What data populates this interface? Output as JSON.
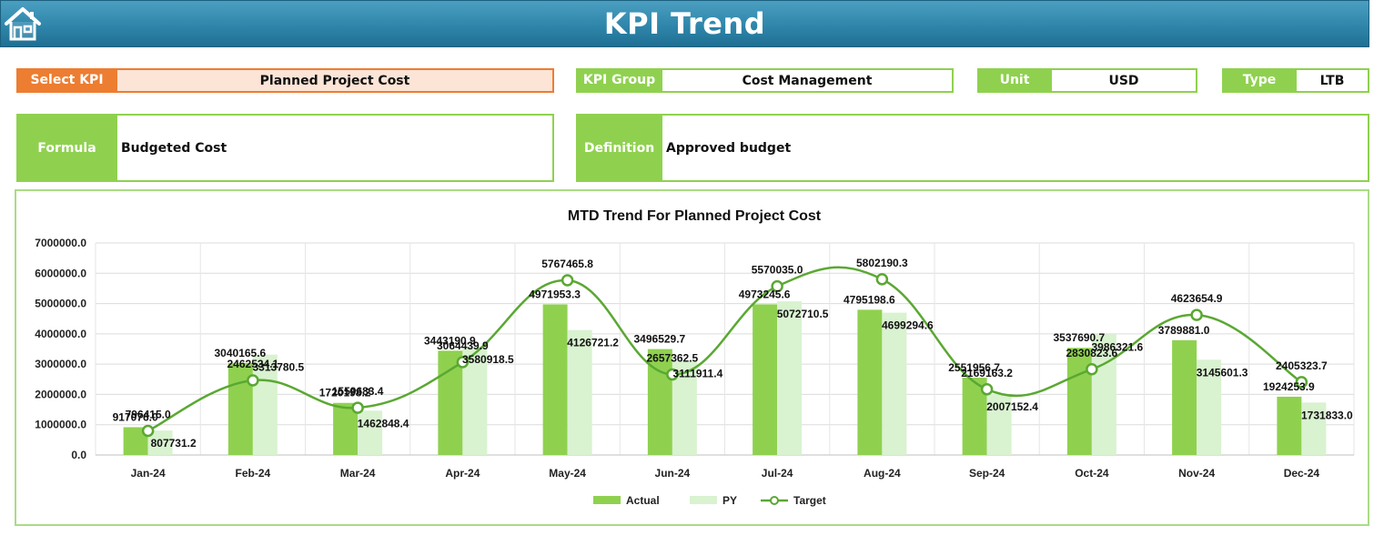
{
  "header": {
    "title": "KPI Trend",
    "home_icon": "home-icon"
  },
  "colors": {
    "header_blue": "#2f86aa",
    "orange": "#ed7d31",
    "orange_light": "#fce4d6",
    "green": "#8fd14f",
    "actual": "#8fd14f",
    "py": "#d9f2d0",
    "target": "#5aa832"
  },
  "fields": {
    "select_kpi_label": "Select KPI",
    "select_kpi_value": "Planned Project Cost",
    "kpi_group_label": "KPI Group",
    "kpi_group_value": "Cost Management",
    "unit_label": "Unit",
    "unit_value": "USD",
    "type_label": "Type",
    "type_value": "LTB",
    "formula_label": "Formula",
    "formula_value": "Budgeted Cost",
    "definition_label": "Definition",
    "definition_value": "Approved budget"
  },
  "chart_data": {
    "type": "bar",
    "title": "MTD Trend For Planned Project Cost",
    "categories": [
      "Jan-24",
      "Feb-24",
      "Mar-24",
      "Apr-24",
      "May-24",
      "Jun-24",
      "Jul-24",
      "Aug-24",
      "Sep-24",
      "Oct-24",
      "Nov-24",
      "Dec-24"
    ],
    "series": [
      {
        "name": "Actual",
        "type": "bar",
        "values": [
          917076.0,
          3040165.6,
          1720198.2,
          3443190.9,
          4971953.3,
          3496529.7,
          4973245.6,
          4795198.6,
          2551956.7,
          3537690.7,
          3789881.0,
          1924253.9
        ],
        "labels": [
          "917076.0",
          "3040165.6",
          "1720198.2",
          "3443190.9",
          "4971953.3",
          "3496529.7",
          "4973245.6",
          "4795198.6",
          "2551956.7",
          "3537690.7",
          "3789881.0",
          "1924253.9"
        ]
      },
      {
        "name": "PY",
        "type": "bar",
        "values": [
          807731.2,
          3313780.5,
          1462848.4,
          3580918.5,
          4126721.2,
          3111911.4,
          5072710.5,
          4699294.6,
          2007152.4,
          3986321.6,
          3145601.3,
          1731833.0
        ],
        "labels": [
          "807731.2",
          "3313780.5",
          "1462848.4",
          "3580918.5",
          "4126721.2",
          "3111911.4",
          "5072710.5",
          "4699294.6",
          "2007152.4",
          "3986321.6",
          "3145601.3",
          "1731833.0"
        ]
      },
      {
        "name": "Target",
        "type": "line",
        "values": [
          796415.0,
          2462534.1,
          1559683.4,
          3064439.9,
          5767465.8,
          2657362.5,
          5570035.0,
          5802190.3,
          2169163.2,
          2830823.6,
          4623654.9,
          2405323.7
        ],
        "labels": [
          "796415.0",
          "2462534.1",
          "1559683.4",
          "3064439.9",
          "5767465.8",
          "2657362.5",
          "5570035.0",
          "5802190.3",
          "2169163.2",
          "2830823.6",
          "4623654.9",
          "2405323.7"
        ]
      }
    ],
    "ylim": [
      0,
      7000000
    ],
    "yticks": [
      "0.0",
      "1000000.0",
      "2000000.0",
      "3000000.0",
      "4000000.0",
      "5000000.0",
      "6000000.0",
      "7000000.0"
    ],
    "ytick_values": [
      0,
      1000000,
      2000000,
      3000000,
      4000000,
      5000000,
      6000000,
      7000000
    ],
    "grid": true,
    "legend": {
      "placement": "bottom",
      "entries": [
        "Actual",
        "PY",
        "Target"
      ]
    }
  }
}
